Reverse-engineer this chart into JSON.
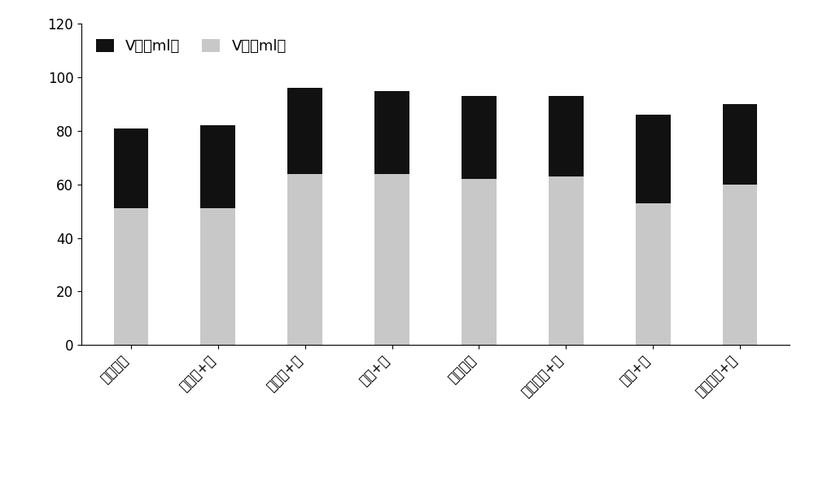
{
  "categories": [
    "阳离子型",
    "阳离子+盐",
    "阳离子+盐",
    "两性+盐",
    "阳离子型",
    "纳米微乳+盐",
    "两性+盐",
    "纳米微乳+盐"
  ],
  "v_liquid": [
    51,
    51,
    64,
    64,
    62,
    63,
    53,
    60
  ],
  "v_oil": [
    30,
    31,
    32,
    31,
    31,
    30,
    33,
    30
  ],
  "v_liquid_color": "#c8c8c8",
  "v_oil_color": "#111111",
  "legend_oil": "V油（ml）",
  "legend_liquid": "V液（ml）",
  "ylim": [
    0,
    120
  ],
  "yticks": [
    0,
    20,
    40,
    60,
    80,
    100,
    120
  ],
  "bar_width": 0.4,
  "tick_fontsize": 12,
  "legend_fontsize": 13,
  "background_color": "#ffffff"
}
